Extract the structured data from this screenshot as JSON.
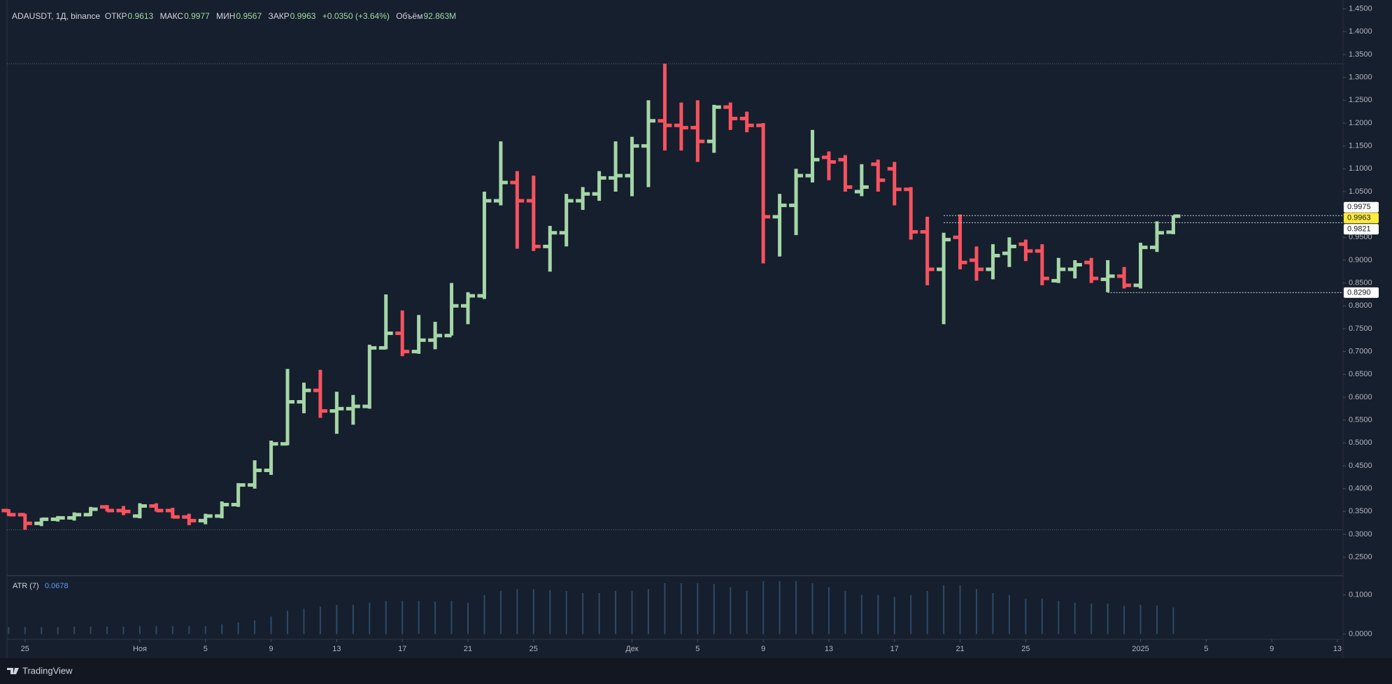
{
  "chart_data": [
    {
      "type": "ohlc",
      "title": "ADAUSDT, 1Д, binance",
      "legend": [
        {
          "label": "ОТКР",
          "value": "0.9613"
        },
        {
          "label": "МАКС",
          "value": "0.9977"
        },
        {
          "label": "МИН",
          "value": "0.9567"
        },
        {
          "label": "ЗАКР",
          "value": "0.9963"
        }
      ],
      "change": "+0.0350 (+3.64%)",
      "volume": {
        "label": "Объём",
        "value": "92.863M"
      },
      "up_color": "#a5d6a7",
      "down_color": "#f7525f",
      "open": [
        0.352,
        0.343,
        0.324,
        0.333,
        0.336,
        0.343,
        0.36,
        0.352,
        0.34,
        0.362,
        0.352,
        0.338,
        0.33,
        0.34,
        0.365,
        0.408,
        0.44,
        0.498,
        0.59,
        0.615,
        0.57,
        0.575,
        0.58,
        0.708,
        0.74,
        0.7,
        0.725,
        0.735,
        0.8,
        0.822,
        1.03,
        1.07,
        1.03,
        0.93,
        0.96,
        1.03,
        1.045,
        1.08,
        1.085,
        1.15,
        1.205,
        1.195,
        1.19,
        1.16,
        1.235,
        1.21,
        1.195,
        0.995,
        1.02,
        1.085,
        1.125,
        1.12,
        1.05,
        1.11,
        1.1,
        1.055,
        0.962,
        0.88,
        0.95,
        0.9,
        0.88,
        0.915,
        0.935,
        0.92,
        0.855,
        0.88,
        0.895,
        0.858,
        0.865,
        0.845,
        0.928,
        0.9613
      ],
      "high": [
        0.355,
        0.345,
        0.336,
        0.34,
        0.348,
        0.36,
        0.364,
        0.362,
        0.368,
        0.368,
        0.358,
        0.345,
        0.345,
        0.372,
        0.412,
        0.462,
        0.505,
        0.662,
        0.632,
        0.66,
        0.612,
        0.605,
        0.715,
        0.825,
        0.79,
        0.78,
        0.765,
        0.85,
        0.83,
        1.05,
        1.16,
        1.095,
        1.085,
        0.975,
        1.045,
        1.06,
        1.095,
        1.16,
        1.17,
        1.25,
        1.33,
        1.245,
        1.25,
        1.24,
        1.245,
        1.225,
        1.2,
        1.045,
        1.1,
        1.185,
        1.138,
        1.13,
        1.11,
        1.12,
        1.115,
        1.06,
        0.995,
        0.96,
        1.0,
        0.93,
        0.935,
        0.95,
        0.945,
        0.935,
        0.905,
        0.9,
        0.905,
        0.9,
        0.885,
        0.938,
        0.985,
        0.9977
      ],
      "low": [
        0.34,
        0.31,
        0.318,
        0.328,
        0.33,
        0.34,
        0.35,
        0.342,
        0.335,
        0.35,
        0.335,
        0.32,
        0.322,
        0.335,
        0.36,
        0.4,
        0.43,
        0.495,
        0.565,
        0.555,
        0.52,
        0.54,
        0.575,
        0.705,
        0.69,
        0.695,
        0.705,
        0.735,
        0.76,
        0.815,
        1.02,
        0.925,
        0.92,
        0.875,
        0.93,
        1.01,
        1.03,
        1.05,
        1.04,
        1.06,
        1.14,
        1.14,
        1.115,
        1.135,
        1.185,
        1.18,
        0.893,
        0.908,
        0.955,
        1.07,
        1.075,
        1.05,
        1.04,
        1.05,
        1.02,
        0.945,
        0.845,
        0.76,
        0.88,
        0.855,
        0.858,
        0.885,
        0.898,
        0.845,
        0.85,
        0.86,
        0.85,
        0.83,
        0.838,
        0.838,
        0.918,
        0.9567
      ],
      "close": [
        0.343,
        0.324,
        0.333,
        0.336,
        0.343,
        0.355,
        0.352,
        0.35,
        0.362,
        0.352,
        0.338,
        0.33,
        0.34,
        0.365,
        0.408,
        0.44,
        0.498,
        0.59,
        0.615,
        0.57,
        0.575,
        0.58,
        0.708,
        0.74,
        0.7,
        0.725,
        0.735,
        0.8,
        0.822,
        1.03,
        1.07,
        1.03,
        0.93,
        0.96,
        1.03,
        1.045,
        1.08,
        1.085,
        1.15,
        1.205,
        1.195,
        1.19,
        1.16,
        1.235,
        1.21,
        1.195,
        0.995,
        1.02,
        1.085,
        1.12,
        1.115,
        1.06,
        1.06,
        1.075,
        1.055,
        0.962,
        0.88,
        0.945,
        0.895,
        0.88,
        0.91,
        0.93,
        0.92,
        0.86,
        0.88,
        0.89,
        0.86,
        0.865,
        0.845,
        0.928,
        0.96,
        0.9963
      ],
      "xlim": [
        -0.1,
        81.3
      ],
      "xticks": [
        {
          "value": 1,
          "label": "25"
        },
        {
          "value": 8,
          "label": "Ноя"
        },
        {
          "value": 12,
          "label": "5"
        },
        {
          "value": 16,
          "label": "9"
        },
        {
          "value": 20,
          "label": "13"
        },
        {
          "value": 24,
          "label": "17"
        },
        {
          "value": 28,
          "label": "21"
        },
        {
          "value": 32,
          "label": "25"
        },
        {
          "value": 38,
          "label": "Дек"
        },
        {
          "value": 42,
          "label": "5"
        },
        {
          "value": 46,
          "label": "9"
        },
        {
          "value": 50,
          "label": "13"
        },
        {
          "value": 54,
          "label": "17"
        },
        {
          "value": 58,
          "label": "21"
        },
        {
          "value": 62,
          "label": "25"
        },
        {
          "value": 69,
          "label": "2025"
        },
        {
          "value": 73,
          "label": "5"
        },
        {
          "value": 77,
          "label": "9"
        },
        {
          "value": 81,
          "label": "13"
        }
      ],
      "ylim": [
        0.2112,
        1.4694
      ],
      "yticks": [
        {
          "value": 1.45,
          "label": "1.4500"
        },
        {
          "value": 1.4,
          "label": "1.4000"
        },
        {
          "value": 1.35,
          "label": "1.3500"
        },
        {
          "value": 1.3,
          "label": "1.3000"
        },
        {
          "value": 1.25,
          "label": "1.2500"
        },
        {
          "value": 1.2,
          "label": "1.2000"
        },
        {
          "value": 1.15,
          "label": "1.1500"
        },
        {
          "value": 1.1,
          "label": "1.1000"
        },
        {
          "value": 1.05,
          "label": "1.0500"
        },
        {
          "value": 1.0,
          "label": "1.0000"
        },
        {
          "value": 0.95,
          "label": "0.9500"
        },
        {
          "value": 0.9,
          "label": "0.9000"
        },
        {
          "value": 0.85,
          "label": "0.8500"
        },
        {
          "value": 0.8,
          "label": "0.8000"
        },
        {
          "value": 0.75,
          "label": "0.7500"
        },
        {
          "value": 0.7,
          "label": "0.7000"
        },
        {
          "value": 0.65,
          "label": "0.6500"
        },
        {
          "value": 0.6,
          "label": "0.6000"
        },
        {
          "value": 0.55,
          "label": "0.5500"
        },
        {
          "value": 0.5,
          "label": "0.5000"
        },
        {
          "value": 0.45,
          "label": "0.4500"
        },
        {
          "value": 0.4,
          "label": "0.4000"
        },
        {
          "value": 0.35,
          "label": "0.3500"
        },
        {
          "value": 0.3,
          "label": "0.3000"
        },
        {
          "value": 0.25,
          "label": "0.2500"
        }
      ],
      "levels": [
        1.33,
        0.31
      ],
      "price_labels": [
        {
          "value": 0.9975,
          "label": "0.9975",
          "color": "#ffffff"
        },
        {
          "value": 0.9963,
          "label": "0.9963",
          "color": "#ffeb3b"
        },
        {
          "value": 0.9821,
          "label": "0.9821",
          "color": "#ffffff"
        },
        {
          "value": 0.829,
          "label": "0.8290",
          "color": "#ffffff"
        }
      ]
    },
    {
      "type": "bar",
      "title": "ATR (7)",
      "last_value": 0.0678,
      "color": "#2e4a68",
      "values": [
        0.018,
        0.018,
        0.018,
        0.018,
        0.019,
        0.019,
        0.019,
        0.019,
        0.02,
        0.02,
        0.02,
        0.02,
        0.02,
        0.025,
        0.03,
        0.035,
        0.045,
        0.06,
        0.065,
        0.07,
        0.075,
        0.075,
        0.08,
        0.085,
        0.085,
        0.085,
        0.083,
        0.085,
        0.08,
        0.1,
        0.11,
        0.115,
        0.115,
        0.112,
        0.11,
        0.105,
        0.105,
        0.11,
        0.11,
        0.115,
        0.13,
        0.13,
        0.13,
        0.128,
        0.12,
        0.11,
        0.135,
        0.135,
        0.135,
        0.13,
        0.12,
        0.11,
        0.1,
        0.1,
        0.095,
        0.1,
        0.11,
        0.125,
        0.125,
        0.115,
        0.105,
        0.1,
        0.09,
        0.09,
        0.085,
        0.08,
        0.078,
        0.078,
        0.072,
        0.075,
        0.073,
        0.0678
      ],
      "ylim": [
        -0.0114,
        0.1477
      ],
      "yticks": [
        {
          "value": 0.1,
          "label": "0.1000"
        },
        {
          "value": 0,
          "label": "0.0000"
        }
      ]
    }
  ],
  "footer": {
    "brand": "TradingView"
  }
}
